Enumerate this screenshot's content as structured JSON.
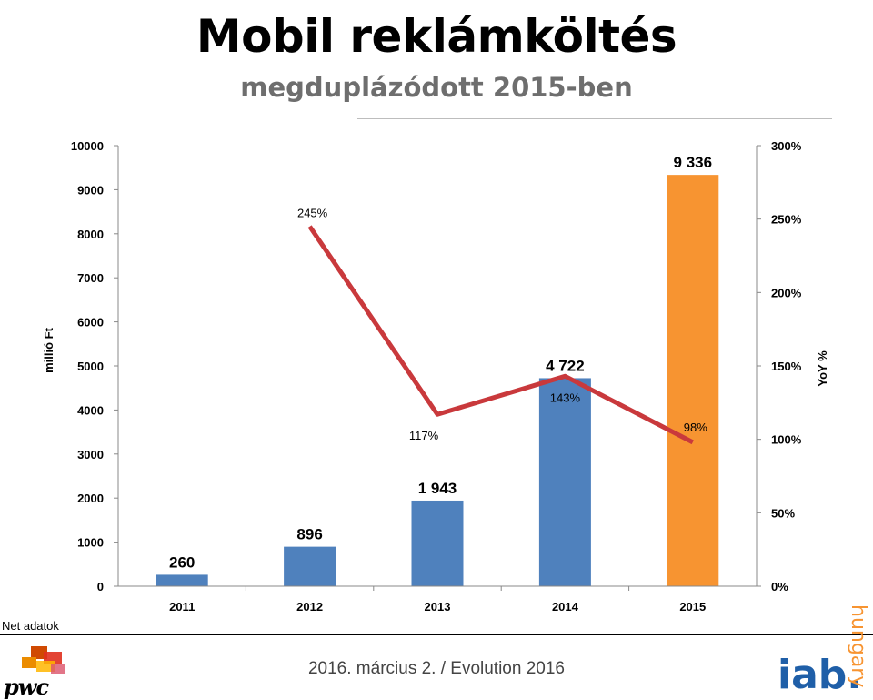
{
  "header": {
    "title": "Mobil reklámköltés",
    "subtitle": "megduplázódott 2015-ben"
  },
  "footer": {
    "source_note": "Net adatok",
    "event": "2016. március 2. / Evolution 2016"
  },
  "logos": {
    "pwc": "pwc",
    "iab": "iab.",
    "iab_country": "hungary"
  },
  "chart_data": {
    "type": "bar",
    "categories": [
      "2011",
      "2012",
      "2013",
      "2014",
      "2015"
    ],
    "bar_values": [
      260,
      896,
      1943,
      4722,
      9336
    ],
    "bar_labels": [
      "260",
      "896",
      "1 943",
      "4 722",
      "9 336"
    ],
    "bar_colors": [
      "#4F81BD",
      "#4F81BD",
      "#4F81BD",
      "#4F81BD",
      "#F79431"
    ],
    "ylabel": "millió Ft",
    "ylim": [
      0,
      10000
    ],
    "y_ticks": [
      "0",
      "1000",
      "2000",
      "3000",
      "4000",
      "5000",
      "6000",
      "7000",
      "8000",
      "9000",
      "10000"
    ],
    "y2label": "YoY %",
    "y2lim": [
      0,
      300
    ],
    "y2_ticks": [
      "0%",
      "50%",
      "100%",
      "150%",
      "200%",
      "250%",
      "300%"
    ],
    "line": {
      "categories": [
        "2012",
        "2013",
        "2014",
        "2015"
      ],
      "values": [
        245,
        117,
        143,
        98
      ],
      "labels": [
        "245%",
        "117%",
        "143%",
        "98%"
      ],
      "color": "#C9393C"
    },
    "grid": false,
    "legend": "none"
  }
}
